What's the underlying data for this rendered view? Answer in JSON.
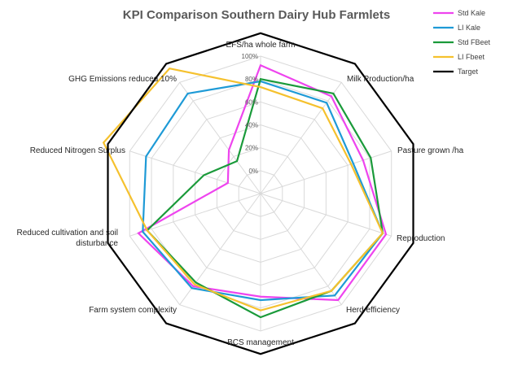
{
  "chart_data": {
    "type": "radar",
    "title": "KPI Comparison Southern Dairy Hub Farmlets",
    "axes": [
      "EFS/ha whole farm",
      "Milk Production/ha",
      "Pasture grown /ha",
      "Reproduction",
      "Herd efficiency",
      "BCS management",
      "Farm system complexity",
      "Reduced cultivation and soil\ndisturbance",
      "Reduced Nitrogen Surplus",
      "GHG Emissions reduced 10%"
    ],
    "ticks": [
      "0%",
      "20%",
      "40%",
      "60%",
      "80%",
      "100%"
    ],
    "range": [
      -20,
      100
    ],
    "grid": true,
    "legend_position": "top-right",
    "series": [
      {
        "name": "Std Kale",
        "color": "#ee44ee",
        "values": [
          92,
          85,
          74,
          95,
          95,
          70,
          80,
          92,
          10,
          27
        ]
      },
      {
        "name": "LI Kale",
        "color": "#1e9ad6",
        "values": [
          78,
          78,
          65,
          92,
          90,
          73,
          82,
          88,
          85,
          88
        ]
      },
      {
        "name": "Std FBeet",
        "color": "#1a9a3a",
        "values": [
          80,
          88,
          81,
          92,
          85,
          88,
          76,
          84,
          32,
          15
        ]
      },
      {
        "name": "LI Fbeet",
        "color": "#f5c12e",
        "values": [
          73,
          72,
          63,
          92,
          85,
          82,
          78,
          84,
          124,
          115
        ]
      },
      {
        "name": "Target",
        "color": "#000000",
        "values": [
          120,
          120,
          120,
          120,
          120,
          120,
          120,
          120,
          120,
          120
        ]
      }
    ]
  }
}
